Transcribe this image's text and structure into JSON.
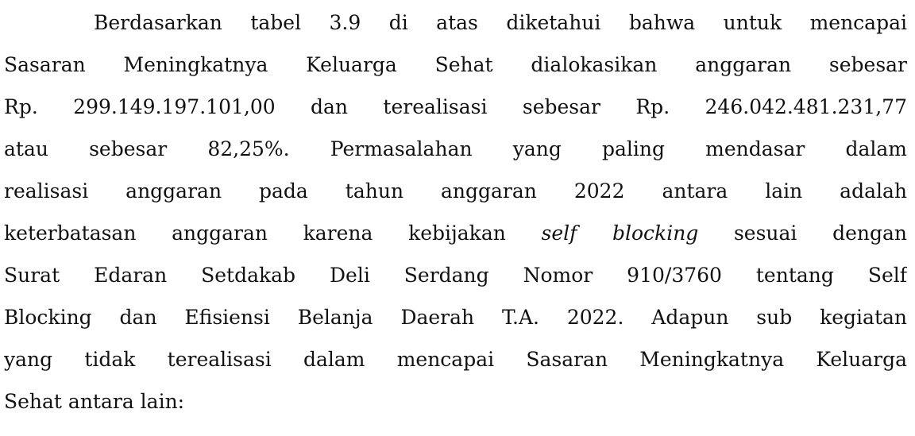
{
  "paragraph": {
    "lines": [
      "Berdasarkan tabel 3.9 di atas diketahui bahwa untuk mencapai",
      "Sasaran Meningkatnya Keluarga Sehat dialokasikan anggaran sebesar",
      "Rp. 299.149.197.101,00 dan terealisasi sebesar Rp. 246.042.481.231,77",
      "atau sebesar 82,25%. Permasalahan yang paling mendasar dalam",
      "realisasi anggaran pada tahun anggaran 2022 antara lain adalah",
      {
        "before": "keterbatasan anggaran karena kebijakan",
        "emphasis": "self blocking",
        "after": "sesuai dengan"
      },
      "Surat Edaran Setdakab Deli Serdang Nomor 910/3760 tentang Self",
      "Blocking dan Efisiensi Belanja Daerah T.A. 2022. Adapun sub kegiatan",
      "yang tidak terealisasi dalam mencapai Sasaran Meningkatnya Keluarga",
      "Sehat antara lain:"
    ]
  }
}
